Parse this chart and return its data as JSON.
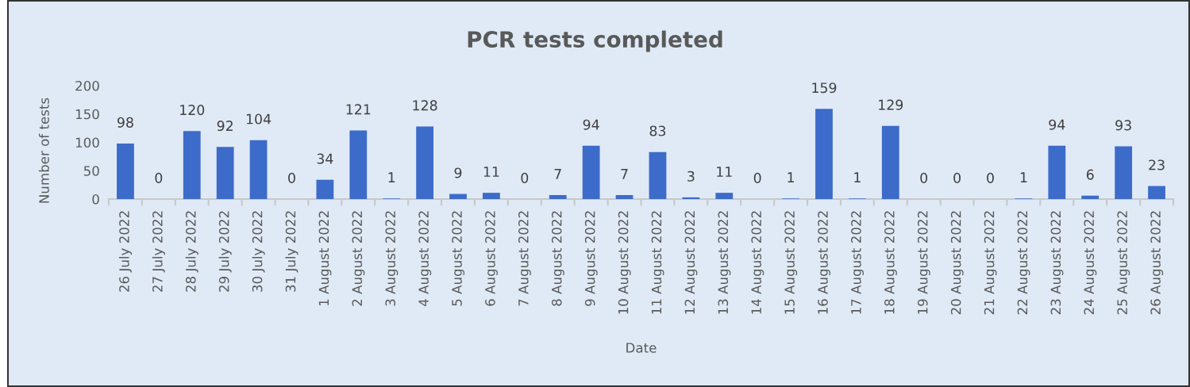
{
  "chart_data": {
    "type": "bar",
    "title": "PCR tests completed",
    "xlabel": "Date",
    "ylabel": "Number of tests",
    "categories": [
      "26 July 2022",
      "27 July 2022",
      "28 July 2022",
      "29 July 2022",
      "30 July 2022",
      "31 July 2022",
      "1 August 2022",
      "2 August 2022",
      "3 August 2022",
      "4 August 2022",
      "5 August 2022",
      "6 August 2022",
      "7 August 2022",
      "8 August 2022",
      "9 August 2022",
      "10 August 2022",
      "11 August 2022",
      "12 August 2022",
      "13 August 2022",
      "14 August 2022",
      "15 August 2022",
      "16 August 2022",
      "17 August 2022",
      "18 August 2022",
      "19 August 2022",
      "20 August 2022",
      "21 August 2022",
      "22 August 2022",
      "23 August 2022",
      "24 August 2022",
      "25 August 2022",
      "26 August 2022"
    ],
    "values": [
      98,
      0,
      120,
      92,
      104,
      0,
      34,
      121,
      1,
      128,
      9,
      11,
      0,
      7,
      94,
      7,
      83,
      3,
      11,
      0,
      1,
      159,
      1,
      129,
      0,
      0,
      0,
      1,
      94,
      6,
      93,
      23
    ],
    "color": "#3d6bc9",
    "ylim": [
      0,
      200
    ],
    "yticks": [
      0,
      50,
      100,
      150,
      200
    ],
    "grid": false,
    "legend": false,
    "data_labels": true
  }
}
